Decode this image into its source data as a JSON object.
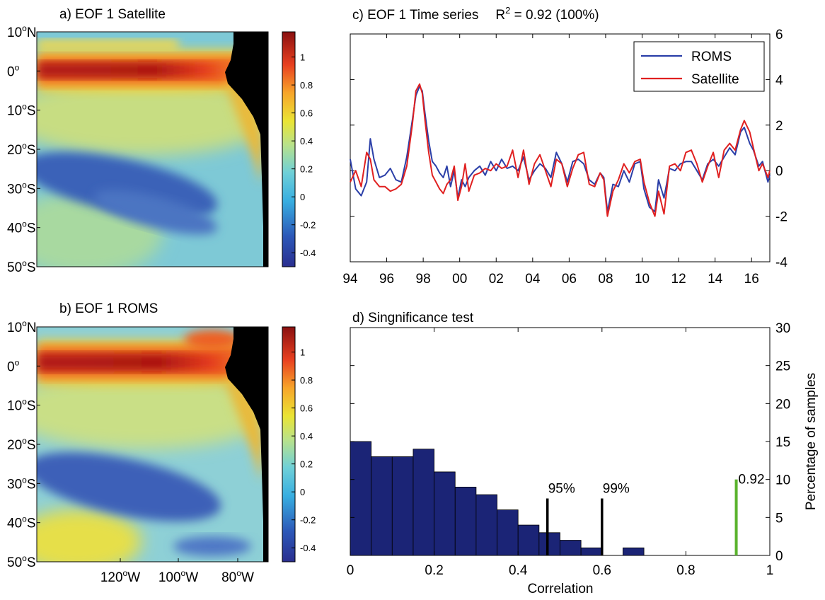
{
  "panels": {
    "a": {
      "title": "a) EOF 1 Satellite",
      "lat_labels": [
        [
          "10",
          "o",
          "N"
        ],
        [
          "0",
          "o",
          ""
        ],
        [
          "10",
          "o",
          "S"
        ],
        [
          "20",
          "o",
          "S"
        ],
        [
          "30",
          "o",
          "S"
        ],
        [
          "40",
          "o",
          "S"
        ],
        [
          "50",
          "o",
          "S"
        ]
      ],
      "colorbar_ticks": [
        "1",
        "0.8",
        "0.6",
        "0.4",
        "0.2",
        "0",
        "-0.2",
        "-0.4"
      ]
    },
    "b": {
      "title": "b) EOF 1 ROMS",
      "lat_labels": [
        [
          "10",
          "o",
          "N"
        ],
        [
          "0",
          "o",
          ""
        ],
        [
          "10",
          "o",
          "S"
        ],
        [
          "20",
          "o",
          "S"
        ],
        [
          "30",
          "o",
          "S"
        ],
        [
          "40",
          "o",
          "S"
        ],
        [
          "50",
          "o",
          "S"
        ]
      ],
      "lon_labels": [
        [
          "120",
          "o",
          "W"
        ],
        [
          "100",
          "o",
          "W"
        ],
        [
          "80",
          "o",
          "W"
        ]
      ],
      "colorbar_ticks": [
        "1",
        "0.8",
        "0.6",
        "0.4",
        "0.2",
        "0",
        "-0.2",
        "-0.4"
      ]
    },
    "c": {
      "title_prefix": "c) EOF 1 Time series",
      "title_r": "R",
      "title_sup": "2",
      "title_suffix": " = 0.92 (100%)",
      "legend": [
        "ROMS",
        "Satellite"
      ]
    },
    "d": {
      "title": "d) Singnificance test",
      "xlabel": "Correlation",
      "ylabel": "Percentage of samples",
      "mark_95": "95%",
      "mark_99": "99%",
      "mark_obs": "0.92"
    }
  },
  "colors": {
    "roms": "#2b3fa8",
    "satellite": "#e02020",
    "bars": "#1b2476",
    "obs_line": "#5ab32d",
    "land": "#000000"
  },
  "chart_data": [
    {
      "type": "line",
      "panel": "c",
      "x_unit": "year",
      "xlim": [
        1994,
        2017
      ],
      "ylim": [
        -4,
        6
      ],
      "xticks": [
        1994,
        1996,
        1998,
        2000,
        2002,
        2004,
        2006,
        2008,
        2010,
        2012,
        2014,
        2016
      ],
      "xtick_labels": [
        "94",
        "96",
        "98",
        "00",
        "02",
        "04",
        "06",
        "08",
        "10",
        "12",
        "14",
        "16"
      ],
      "yticks": [
        -4,
        -2,
        0,
        2,
        4,
        6
      ],
      "ytick_labels": [
        "-4",
        "-2",
        "0",
        "2",
        "4",
        "6"
      ],
      "y_axis_side": "right",
      "legend_position": "top-right",
      "grid": false,
      "series": [
        {
          "name": "ROMS",
          "x": [
            1994.0,
            1994.3,
            1994.6,
            1994.9,
            1995.1,
            1995.3,
            1995.6,
            1995.9,
            1996.2,
            1996.5,
            1996.8,
            1997.1,
            1997.4,
            1997.6,
            1997.8,
            1997.95,
            1998.1,
            1998.3,
            1998.5,
            1998.7,
            1998.9,
            1999.1,
            1999.3,
            1999.5,
            1999.7,
            1999.9,
            2000.1,
            2000.3,
            2000.5,
            2000.8,
            2001.1,
            2001.4,
            2001.7,
            2002.0,
            2002.3,
            2002.6,
            2002.9,
            2003.2,
            2003.5,
            2003.8,
            2004.1,
            2004.4,
            2004.7,
            2005.0,
            2005.3,
            2005.6,
            2005.9,
            2006.2,
            2006.5,
            2006.8,
            2007.1,
            2007.4,
            2007.7,
            2007.9,
            2008.1,
            2008.4,
            2008.7,
            2009.0,
            2009.3,
            2009.6,
            2009.9,
            2010.1,
            2010.4,
            2010.7,
            2010.9,
            2011.2,
            2011.5,
            2011.8,
            2012.1,
            2012.4,
            2012.7,
            2013.0,
            2013.3,
            2013.6,
            2013.9,
            2014.2,
            2014.5,
            2014.8,
            2015.1,
            2015.4,
            2015.6,
            2015.9,
            2016.1,
            2016.4,
            2016.6,
            2016.9,
            2017.0
          ],
          "y": [
            0.5,
            -0.8,
            -1.1,
            -0.5,
            1.4,
            0.5,
            -0.3,
            -0.2,
            0.1,
            -0.4,
            -0.5,
            0.6,
            2.2,
            3.3,
            3.7,
            3.5,
            2.5,
            1.3,
            0.4,
            0.2,
            -0.1,
            -0.3,
            0.2,
            -0.7,
            0.0,
            -1.2,
            -0.4,
            -0.7,
            -0.3,
            0.0,
            0.2,
            -0.2,
            0.4,
            0.0,
            0.5,
            0.1,
            0.2,
            0.0,
            0.6,
            -0.4,
            0.0,
            0.3,
            0.1,
            -0.3,
            0.8,
            0.3,
            -0.5,
            0.4,
            0.5,
            0.3,
            -0.4,
            -0.6,
            -0.1,
            -0.3,
            -1.8,
            -0.6,
            -0.7,
            0.0,
            -0.5,
            0.3,
            0.4,
            -0.8,
            -1.6,
            -1.8,
            -0.4,
            -1.2,
            0.1,
            0.0,
            0.3,
            0.4,
            0.4,
            0.0,
            -0.4,
            0.3,
            0.5,
            0.2,
            0.6,
            1.0,
            0.7,
            1.7,
            1.9,
            1.2,
            0.9,
            0.2,
            0.4,
            -0.5,
            -0.2
          ]
        },
        {
          "name": "Satellite",
          "x": [
            1994.0,
            1994.3,
            1994.6,
            1994.9,
            1995.1,
            1995.3,
            1995.6,
            1995.9,
            1996.2,
            1996.5,
            1996.8,
            1997.1,
            1997.4,
            1997.6,
            1997.8,
            1997.95,
            1998.1,
            1998.3,
            1998.5,
            1998.7,
            1998.9,
            1999.1,
            1999.3,
            1999.5,
            1999.7,
            1999.9,
            2000.1,
            2000.3,
            2000.5,
            2000.8,
            2001.1,
            2001.4,
            2001.7,
            2002.0,
            2002.3,
            2002.6,
            2002.9,
            2003.2,
            2003.5,
            2003.8,
            2004.1,
            2004.4,
            2004.7,
            2005.0,
            2005.3,
            2005.6,
            2005.9,
            2006.2,
            2006.5,
            2006.8,
            2007.1,
            2007.4,
            2007.7,
            2007.9,
            2008.1,
            2008.4,
            2008.7,
            2009.0,
            2009.3,
            2009.6,
            2009.9,
            2010.1,
            2010.4,
            2010.7,
            2010.9,
            2011.2,
            2011.5,
            2011.8,
            2012.1,
            2012.4,
            2012.7,
            2013.0,
            2013.3,
            2013.6,
            2013.9,
            2014.2,
            2014.5,
            2014.8,
            2015.1,
            2015.4,
            2015.6,
            2015.9,
            2016.1,
            2016.4,
            2016.6,
            2016.9,
            2017.0
          ],
          "y": [
            -0.5,
            0.0,
            -0.7,
            0.8,
            0.5,
            -0.4,
            -0.7,
            -0.7,
            -0.9,
            -0.8,
            -0.6,
            0.2,
            2.0,
            3.5,
            3.8,
            3.4,
            2.2,
            0.8,
            -0.2,
            -0.5,
            -0.8,
            -1.0,
            -0.6,
            -0.4,
            0.2,
            -1.3,
            -0.7,
            0.3,
            -0.9,
            -0.2,
            -0.1,
            0.1,
            0.0,
            0.3,
            0.1,
            0.2,
            0.9,
            -0.3,
            0.9,
            -0.6,
            0.3,
            0.7,
            0.0,
            -0.7,
            0.5,
            0.3,
            -0.7,
            0.1,
            0.7,
            0.8,
            -0.6,
            -0.7,
            -0.1,
            -0.4,
            -2.0,
            -0.9,
            -0.4,
            0.3,
            -0.1,
            0.4,
            0.5,
            -0.5,
            -1.4,
            -2.0,
            -0.9,
            -1.9,
            0.2,
            0.3,
            0.0,
            0.8,
            0.9,
            0.3,
            -0.5,
            0.2,
            0.8,
            -0.3,
            0.9,
            1.2,
            0.9,
            1.8,
            2.2,
            1.7,
            1.0,
            0.0,
            0.3,
            -0.3,
            0.0
          ]
        }
      ]
    },
    {
      "type": "bar",
      "panel": "d",
      "xlabel": "Correlation",
      "ylabel": "Percentage of samples",
      "xlim": [
        0,
        1
      ],
      "ylim": [
        0,
        30
      ],
      "xticks": [
        0,
        0.2,
        0.4,
        0.6,
        0.8,
        1
      ],
      "xtick_labels": [
        "0",
        "0.2",
        "0.4",
        "0.6",
        "0.8",
        "1"
      ],
      "yticks": [
        0,
        5,
        10,
        15,
        20,
        25,
        30
      ],
      "ytick_labels": [
        "0",
        "5",
        "10",
        "15",
        "20",
        "25",
        "30"
      ],
      "y_axis_side": "right",
      "grid": false,
      "bin_width": 0.05,
      "bin_starts": [
        0.0,
        0.05,
        0.1,
        0.15,
        0.2,
        0.25,
        0.3,
        0.35,
        0.4,
        0.45,
        0.5,
        0.55,
        0.6,
        0.65
      ],
      "values": [
        15.0,
        13.0,
        13.0,
        14.0,
        11.0,
        9.0,
        8.0,
        6.0,
        4.0,
        3.0,
        2.0,
        1.0,
        0.0,
        1.0
      ],
      "threshold_95": {
        "x": 0.47,
        "y": 7.5
      },
      "threshold_99": {
        "x": 0.6,
        "y": 7.5
      },
      "observed": {
        "x": 0.92,
        "y": 10
      }
    }
  ]
}
